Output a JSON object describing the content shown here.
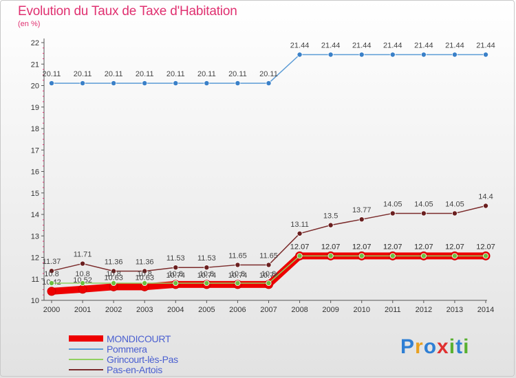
{
  "header": {
    "title": "Evolution du Taux de Taxe d'Habitation",
    "subtitle": "(en %)"
  },
  "brand": {
    "letters": [
      "P",
      "r",
      "o",
      "x",
      "i",
      "t",
      "i"
    ],
    "colors": [
      "#2f7fd4",
      "#e8a020",
      "#2f7fd4",
      "#e03030",
      "#58b030",
      "#2f7fd4",
      "#58b030"
    ]
  },
  "chart_data": {
    "type": "line",
    "title": "Evolution du Taux de Taxe d'Habitation",
    "ylabel": "(en %)",
    "xlabel": "",
    "x": [
      "2000",
      "2001",
      "2002",
      "2003",
      "2004",
      "2005",
      "2006",
      "2007",
      "2008",
      "2009",
      "2010",
      "2011",
      "2012",
      "2013",
      "2014"
    ],
    "ylim": [
      10,
      22
    ],
    "yticks": [
      10,
      11,
      12,
      13,
      14,
      15,
      16,
      17,
      18,
      19,
      20,
      21,
      22
    ],
    "grid": false,
    "legend_position": "bottom-left",
    "series": [
      {
        "name": "MONDICOURT",
        "color": "#ee0000",
        "marker_color": "#ee0000",
        "values": [
          10.42,
          10.52,
          10.63,
          10.63,
          10.74,
          10.74,
          10.74,
          10.74,
          12.07,
          12.07,
          12.07,
          12.07,
          12.07,
          12.07,
          12.07
        ],
        "labels": [
          "10.42",
          "10.52",
          "10.63",
          "10.63",
          "10.74",
          "10.74",
          "10.74",
          "10.74",
          "12.07",
          "12.07",
          "12.07",
          "12.07",
          "12.07",
          "12.07",
          "12.07"
        ]
      },
      {
        "name": "Pommera",
        "color": "#5b9bd5",
        "marker_color": "#3a80c8",
        "values": [
          20.11,
          20.11,
          20.11,
          20.11,
          20.11,
          20.11,
          20.11,
          20.11,
          21.44,
          21.44,
          21.44,
          21.44,
          21.44,
          21.44,
          21.44
        ],
        "labels": [
          "20.11",
          "20.11",
          "20.11",
          "20.11",
          "20.11",
          "20.11",
          "20.11",
          "20.11",
          "21.44",
          "21.44",
          "21.44",
          "21.44",
          "21.44",
          "21.44",
          "21.44"
        ]
      },
      {
        "name": "Grincourt-lès-Pas",
        "color": "#90d060",
        "marker_color": "#6cc040",
        "values": [
          10.8,
          10.8,
          10.8,
          10.8,
          10.8,
          10.8,
          10.8,
          10.8,
          12.07,
          12.07,
          12.07,
          12.07,
          12.07,
          12.07,
          12.07
        ],
        "labels": [
          "10.8",
          "10.8",
          "10.8",
          "10.8",
          "10.8",
          "10.8",
          "10.8",
          "10.8",
          "12.07",
          "12.07",
          "12.07",
          "12.07",
          "12.07",
          "12.07",
          "12.07"
        ]
      },
      {
        "name": "Pas-en-Artois",
        "color": "#7a2a2a",
        "marker_color": "#6a1f1f",
        "values": [
          11.37,
          11.71,
          11.36,
          11.36,
          11.53,
          11.53,
          11.65,
          11.65,
          13.11,
          13.5,
          13.77,
          14.05,
          14.05,
          14.05,
          14.4
        ],
        "labels": [
          "11.37",
          "11.71",
          "11.36",
          "11.36",
          "11.53",
          "11.53",
          "11.65",
          "11.65",
          "13.11",
          "13.5",
          "13.77",
          "14.05",
          "14.05",
          "14.05",
          "14.4"
        ]
      }
    ]
  }
}
